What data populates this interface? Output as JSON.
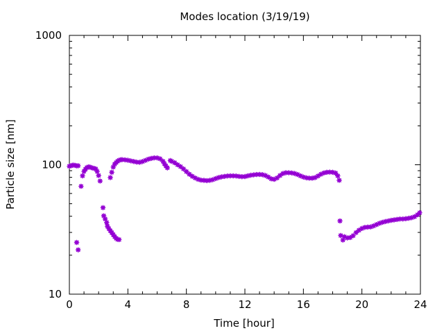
{
  "chart_data": {
    "type": "scatter",
    "title": "Modes location (3/19/19)",
    "xlabel": "Time [hour]",
    "ylabel": "Particle size [nm]",
    "xlim": [
      0,
      24
    ],
    "ylim": [
      10,
      1000
    ],
    "yscale": "log",
    "x_ticks": [
      0,
      4,
      8,
      12,
      16,
      20,
      24
    ],
    "x_tick_labels": [
      "0",
      "4",
      "8",
      "12",
      "16",
      "20",
      "24"
    ],
    "y_ticks": [
      10,
      100,
      1000
    ],
    "y_tick_labels": [
      "10",
      "100",
      "1000"
    ],
    "grid": false,
    "marker_color": "#9400d3",
    "series": [
      {
        "points": [
          [
            0.0,
            97.5
          ],
          [
            0.1,
            98.2
          ],
          [
            0.2,
            99.1
          ],
          [
            0.3,
            99.4
          ],
          [
            0.4,
            98.9
          ],
          [
            0.5,
            98.1
          ],
          [
            0.6,
            98.3
          ],
          [
            0.8,
            68.2
          ],
          [
            0.9,
            82.1
          ],
          [
            1.0,
            88.8
          ],
          [
            1.1,
            92.5
          ],
          [
            1.2,
            95.1
          ],
          [
            1.3,
            96.3
          ],
          [
            1.4,
            96.1
          ],
          [
            1.5,
            95.0
          ],
          [
            1.6,
            94.3
          ],
          [
            1.7,
            93.7
          ],
          [
            1.8,
            92.9
          ],
          [
            1.9,
            88.8
          ],
          [
            2.0,
            82.6
          ],
          [
            2.1,
            74.9
          ],
          [
            2.3,
            46.6
          ],
          [
            2.35,
            40.3
          ],
          [
            2.45,
            38.1
          ],
          [
            2.55,
            35.8
          ],
          [
            2.6,
            33.5
          ],
          [
            2.7,
            32.1
          ],
          [
            2.8,
            30.9
          ],
          [
            2.9,
            29.9
          ],
          [
            3.0,
            28.8
          ],
          [
            3.1,
            27.8
          ],
          [
            3.2,
            27.0
          ],
          [
            3.3,
            26.5
          ],
          [
            3.4,
            26.4
          ],
          [
            2.8,
            79.6
          ],
          [
            2.9,
            87.5
          ],
          [
            3.0,
            96.0
          ],
          [
            3.1,
            101.1
          ],
          [
            3.2,
            104.1
          ],
          [
            3.3,
            106.6
          ],
          [
            3.4,
            108.4
          ],
          [
            3.5,
            109.3
          ],
          [
            3.6,
            109.6
          ],
          [
            3.8,
            109.2
          ],
          [
            4.0,
            108.4
          ],
          [
            4.2,
            107.2
          ],
          [
            4.4,
            106.0
          ],
          [
            4.6,
            104.9
          ],
          [
            4.8,
            104.5
          ],
          [
            5.0,
            105.9
          ],
          [
            5.2,
            108.2
          ],
          [
            5.4,
            110.5
          ],
          [
            5.6,
            112.0
          ],
          [
            5.8,
            113.1
          ],
          [
            6.0,
            113.0
          ],
          [
            6.2,
            111.2
          ],
          [
            6.4,
            106.4
          ],
          [
            6.5,
            101.8
          ],
          [
            6.6,
            98.0
          ],
          [
            6.7,
            94.6
          ],
          [
            6.9,
            107.8
          ],
          [
            7.0,
            106.3
          ],
          [
            7.2,
            103.7
          ],
          [
            7.4,
            100.0
          ],
          [
            7.6,
            96.8
          ],
          [
            7.8,
            92.9
          ],
          [
            8.0,
            88.6
          ],
          [
            8.2,
            84.6
          ],
          [
            8.4,
            81.5
          ],
          [
            8.6,
            79.1
          ],
          [
            8.8,
            77.2
          ],
          [
            9.0,
            76.1
          ],
          [
            9.2,
            75.8
          ],
          [
            9.4,
            75.4
          ],
          [
            9.6,
            75.8
          ],
          [
            9.8,
            76.7
          ],
          [
            10.0,
            78.2
          ],
          [
            10.2,
            79.6
          ],
          [
            10.4,
            80.6
          ],
          [
            10.6,
            81.3
          ],
          [
            10.8,
            81.9
          ],
          [
            11.0,
            82.1
          ],
          [
            11.2,
            82.1
          ],
          [
            11.4,
            81.9
          ],
          [
            11.6,
            81.3
          ],
          [
            11.8,
            80.9
          ],
          [
            12.0,
            81.1
          ],
          [
            12.2,
            82.1
          ],
          [
            12.4,
            83.0
          ],
          [
            12.6,
            83.6
          ],
          [
            12.8,
            84.1
          ],
          [
            13.0,
            84.2
          ],
          [
            13.2,
            83.8
          ],
          [
            13.4,
            82.6
          ],
          [
            13.6,
            80.4
          ],
          [
            13.8,
            77.9
          ],
          [
            14.0,
            77.2
          ],
          [
            14.2,
            79.1
          ],
          [
            14.4,
            82.6
          ],
          [
            14.6,
            85.6
          ],
          [
            14.8,
            86.8
          ],
          [
            15.0,
            86.8
          ],
          [
            15.2,
            86.5
          ],
          [
            15.4,
            85.6
          ],
          [
            15.6,
            84.1
          ],
          [
            15.8,
            82.1
          ],
          [
            16.0,
            80.4
          ],
          [
            16.2,
            79.3
          ],
          [
            16.4,
            78.8
          ],
          [
            16.6,
            78.8
          ],
          [
            16.8,
            79.6
          ],
          [
            17.0,
            81.9
          ],
          [
            17.2,
            84.6
          ],
          [
            17.4,
            86.5
          ],
          [
            17.6,
            87.5
          ],
          [
            17.8,
            87.8
          ],
          [
            18.0,
            87.5
          ],
          [
            18.2,
            86.3
          ],
          [
            18.35,
            82.1
          ],
          [
            18.45,
            75.9
          ],
          [
            0.5,
            25.1
          ],
          [
            0.6,
            22.0
          ],
          [
            18.5,
            36.8
          ],
          [
            18.55,
            28.4
          ],
          [
            18.7,
            26.2
          ],
          [
            18.8,
            27.8
          ],
          [
            19.0,
            27.2
          ],
          [
            19.2,
            27.4
          ],
          [
            19.4,
            28.3
          ],
          [
            19.6,
            29.9
          ],
          [
            19.8,
            31.2
          ],
          [
            20.0,
            32.2
          ],
          [
            20.2,
            32.8
          ],
          [
            20.4,
            33.0
          ],
          [
            20.6,
            33.1
          ],
          [
            20.8,
            33.7
          ],
          [
            21.0,
            34.5
          ],
          [
            21.2,
            35.3
          ],
          [
            21.4,
            35.9
          ],
          [
            21.6,
            36.4
          ],
          [
            21.8,
            36.8
          ],
          [
            22.0,
            37.2
          ],
          [
            22.2,
            37.5
          ],
          [
            22.4,
            37.8
          ],
          [
            22.6,
            38.1
          ],
          [
            22.8,
            38.1
          ],
          [
            23.0,
            38.3
          ],
          [
            23.2,
            38.6
          ],
          [
            23.4,
            39.0
          ],
          [
            23.6,
            39.7
          ],
          [
            23.8,
            41.1
          ],
          [
            23.95,
            42.6
          ]
        ]
      }
    ]
  }
}
